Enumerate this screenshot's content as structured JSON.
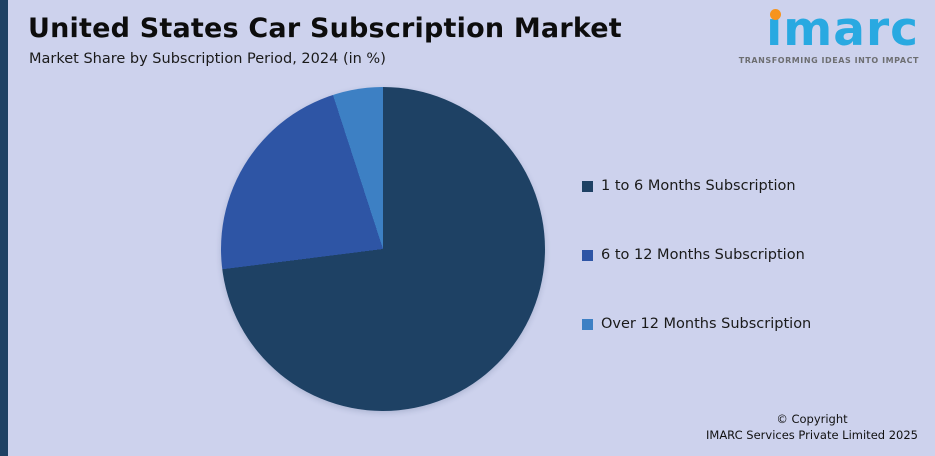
{
  "header": {
    "title": "United States Car Subscription Market",
    "subtitle": "Market Share by Subscription Period, 2024 (in %)"
  },
  "logo": {
    "text": "ımarc",
    "tagline": "TRANSFORMING IDEAS INTO IMPACT",
    "blue": "#29a9e1",
    "orange": "#f7941d"
  },
  "chart_data": {
    "type": "pie",
    "title": "United States Car Subscription Market",
    "subtitle": "Market Share by Subscription Period, 2024 (in %)",
    "labels": [
      "1 to 6 Months Subscription",
      "6 to 12 Months Subscription",
      "Over 12 Months Subscription"
    ],
    "values": [
      73,
      22,
      5
    ],
    "colors": [
      "#1e4164",
      "#2e55a5",
      "#3d80c4"
    ],
    "legend_position": "right",
    "start_angle_deg": 0,
    "direction": "clockwise"
  },
  "footer": {
    "copyright_line1": "© Copyright",
    "copyright_line2": "IMARC Services Private Limited 2025"
  },
  "colors": {
    "background": "#cdd2ed",
    "accent_bar": "#1e4164"
  }
}
